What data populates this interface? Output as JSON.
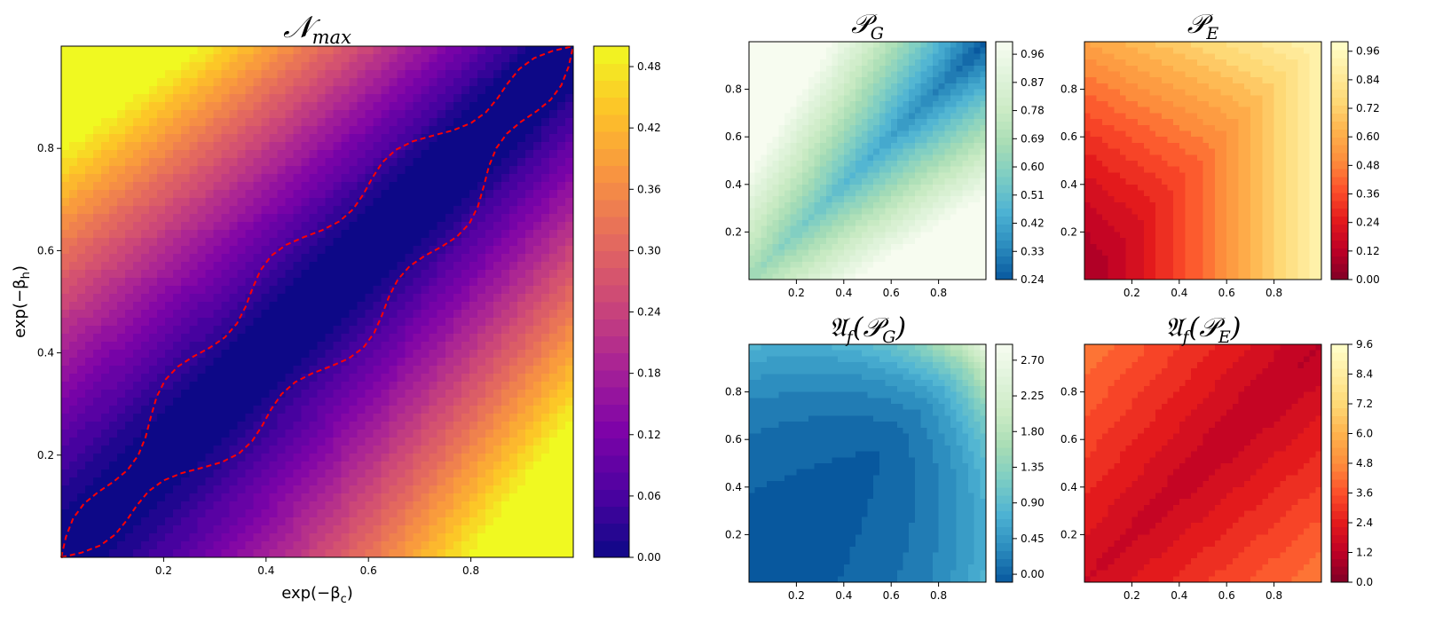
{
  "colors": {
    "plasma": [
      "#0d0887",
      "#4c02a1",
      "#7e03a8",
      "#a92395",
      "#cc4778",
      "#e56b5d",
      "#f89441",
      "#fdc328",
      "#f0f921"
    ],
    "GnBu_r": [
      "#08589e",
      "#2b8cbe",
      "#4eb3d3",
      "#7bccc4",
      "#a8ddb5",
      "#ccebc5",
      "#e0f3db",
      "#f7fcf0"
    ],
    "YlOrRd_r": [
      "#800026",
      "#bd0026",
      "#e31a1c",
      "#fc4e2a",
      "#fd8d3c",
      "#feb24c",
      "#fed976",
      "#ffeda0",
      "#ffffcc"
    ],
    "boundary": "#ff0000"
  },
  "chart_data": [
    {
      "type": "heatmap",
      "title": "𝒩",
      "title_sub": "max",
      "xlabel": "exp(−β",
      "xlabel_sub": "c",
      "ylabel": "exp(−β",
      "ylabel_sub": "h",
      "xlim": [
        0,
        1
      ],
      "ylim": [
        0,
        1
      ],
      "xticks": [
        "0.2",
        "0.4",
        "0.6",
        "0.8"
      ],
      "yticks": [
        "0.2",
        "0.4",
        "0.6",
        "0.8"
      ],
      "colormap": "plasma",
      "levels": 26,
      "vmin": 0.0,
      "vmax": 0.5,
      "colorbar_ticks": [
        "0.00",
        "0.06",
        "0.12",
        "0.18",
        "0.24",
        "0.30",
        "0.36",
        "0.42",
        "0.48"
      ],
      "annotation": "red dashed contour enclosing the zero region around the diagonal"
    },
    {
      "type": "heatmap",
      "title": "𝒫",
      "title_sub": "G",
      "xlim": [
        0,
        1
      ],
      "ylim": [
        0,
        1
      ],
      "xticks": [
        "0.2",
        "0.4",
        "0.6",
        "0.8"
      ],
      "yticks": [
        "0.2",
        "0.4",
        "0.6",
        "0.8"
      ],
      "colormap": "GnBu_r",
      "vmin": 0.24,
      "vmax": 1.0,
      "colorbar_ticks": [
        "0.24",
        "0.33",
        "0.42",
        "0.51",
        "0.60",
        "0.69",
        "0.78",
        "0.87",
        "0.96"
      ]
    },
    {
      "type": "heatmap",
      "title": "𝒫",
      "title_sub": "E",
      "xlim": [
        0,
        1
      ],
      "ylim": [
        0,
        1
      ],
      "xticks": [
        "0.2",
        "0.4",
        "0.6",
        "0.8"
      ],
      "yticks": [
        "0.2",
        "0.4",
        "0.6",
        "0.8"
      ],
      "colormap": "YlOrRd_r",
      "vmin": 0.0,
      "vmax": 1.0,
      "colorbar_ticks": [
        "0.00",
        "0.12",
        "0.24",
        "0.36",
        "0.48",
        "0.60",
        "0.72",
        "0.84",
        "0.96"
      ]
    },
    {
      "type": "heatmap",
      "title": "𝔄",
      "title_sub": "f",
      "title_arg": "(𝒫",
      "title_arg_sub": "G",
      "title_close": ")",
      "xlim": [
        0,
        1
      ],
      "ylim": [
        0,
        1
      ],
      "xticks": [
        "0.2",
        "0.4",
        "0.6",
        "0.8"
      ],
      "yticks": [
        "0.2",
        "0.4",
        "0.6",
        "0.8"
      ],
      "colormap": "GnBu_r",
      "vmin": -0.1,
      "vmax": 2.9,
      "colorbar_ticks": [
        "0.00",
        "0.45",
        "0.90",
        "1.35",
        "1.80",
        "2.25",
        "2.70"
      ]
    },
    {
      "type": "heatmap",
      "title": "𝔄",
      "title_sub": "f",
      "title_arg": "(𝒫",
      "title_arg_sub": "E",
      "title_close": ")",
      "xlim": [
        0,
        1
      ],
      "ylim": [
        0,
        1
      ],
      "xticks": [
        "0.2",
        "0.4",
        "0.6",
        "0.8"
      ],
      "yticks": [
        "0.2",
        "0.4",
        "0.6",
        "0.8"
      ],
      "colormap": "YlOrRd_r",
      "vmin": 0.0,
      "vmax": 9.6,
      "colorbar_ticks": [
        "0.0",
        "1.2",
        "2.4",
        "3.6",
        "4.8",
        "6.0",
        "7.2",
        "8.4",
        "9.6"
      ]
    }
  ]
}
